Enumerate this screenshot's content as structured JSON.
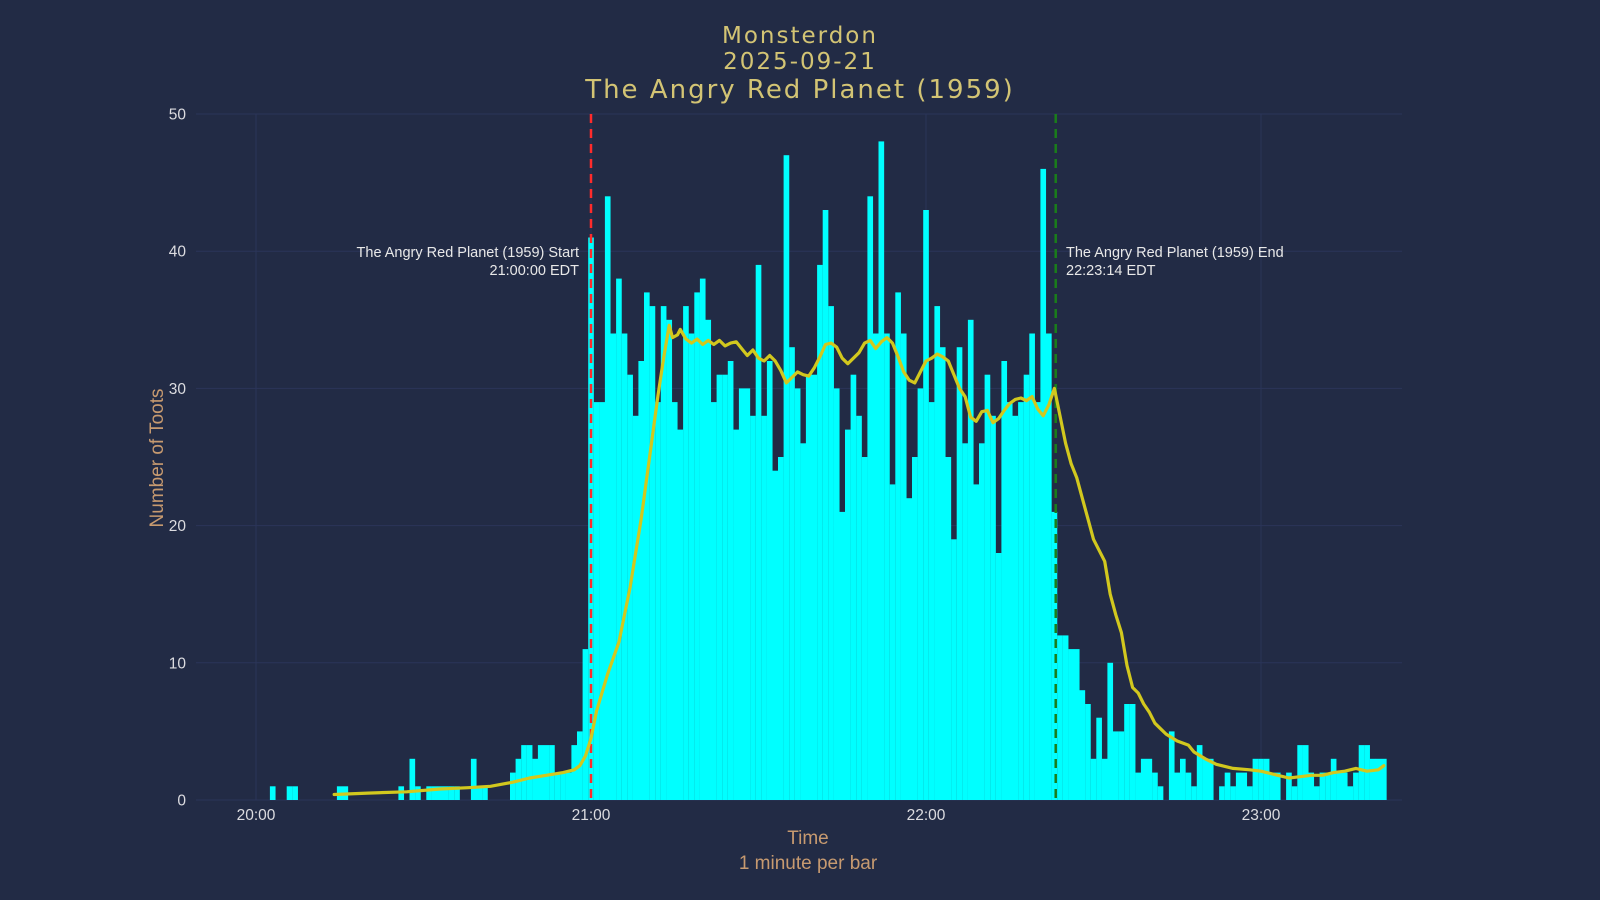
{
  "figure": {
    "title_lines": [
      "Monsterdon",
      "2025-09-21",
      "The Angry Red Planet (1959)"
    ]
  },
  "axes": {
    "y_label": "Number of Toots",
    "x_label": "Time",
    "x_sublabel": "1 minute per bar",
    "y_ticks": [
      0,
      10,
      20,
      30,
      40,
      50
    ],
    "x_ticks": [
      {
        "label": "20:00",
        "minute": 0
      },
      {
        "label": "21:00",
        "minute": 60
      },
      {
        "label": "22:00",
        "minute": 120
      },
      {
        "label": "23:00",
        "minute": 180
      }
    ]
  },
  "annotations": {
    "start": {
      "line1": "The Angry Red Planet (1959) Start",
      "line2": "21:00:00 EDT",
      "minute": 60
    },
    "end": {
      "line1": "The Angry Red Planet (1959) End",
      "line2": "22:23:14 EDT",
      "minute": 143.233
    }
  },
  "colors": {
    "background": "#222b45",
    "grid": "#2b3559",
    "bar": "#00ffff",
    "average_line": "#d2c81e",
    "start_line": "#ff2b2b",
    "end_line": "#1a7d1a",
    "title_text": "#d3c474",
    "axis_label_text": "#c79a70",
    "tick_text": "#dcdce0",
    "annotation_text": "#e8e8e8"
  },
  "chart_data": {
    "type": "bar",
    "title": "Monsterdon 2025-09-21 — The Angry Red Planet (1959)",
    "xlabel": "Time",
    "ylabel": "Number of Toots",
    "ylim": [
      0,
      50
    ],
    "grid": true,
    "legend": false,
    "x_start_label": "20:00",
    "minutes_per_bar": 1,
    "bar_values_by_minute_from_2000": [
      0,
      0,
      0,
      1,
      0,
      0,
      1,
      1,
      0,
      0,
      0,
      0,
      0,
      0,
      0,
      1,
      1,
      0,
      0,
      0,
      0,
      0,
      0,
      0,
      0,
      0,
      1,
      0,
      3,
      1,
      0,
      1,
      1,
      1,
      1,
      1,
      1,
      0,
      0,
      3,
      1,
      1,
      0,
      0,
      0,
      0,
      2,
      3,
      4,
      4,
      3,
      4,
      4,
      4,
      2,
      2,
      2,
      4,
      5,
      11,
      41,
      29,
      29,
      44,
      34,
      38,
      34,
      31,
      28,
      32,
      37,
      36,
      29,
      36,
      35,
      29,
      27,
      36,
      34,
      37,
      38,
      35,
      29,
      31,
      31,
      32,
      27,
      30,
      30,
      28,
      39,
      28,
      32,
      24,
      25,
      47,
      33,
      30,
      26,
      31,
      31,
      39,
      43,
      36,
      30,
      21,
      27,
      31,
      28,
      25,
      44,
      34,
      48,
      34,
      23,
      37,
      34,
      22,
      25,
      30,
      43,
      29,
      36,
      33,
      25,
      19,
      33,
      26,
      35,
      23,
      26,
      31,
      28,
      18,
      32,
      29,
      28,
      29,
      31,
      34,
      29,
      46,
      34,
      21,
      12,
      12,
      11,
      11,
      8,
      7,
      3,
      6,
      3,
      10,
      5,
      5,
      7,
      7,
      2,
      3,
      3,
      2,
      1,
      0,
      5,
      2,
      3,
      2,
      1,
      4,
      3,
      3,
      0,
      1,
      2,
      1,
      2,
      2,
      1,
      3,
      3,
      3,
      2,
      2,
      0,
      2,
      1,
      4,
      4,
      2,
      1,
      2,
      2,
      3,
      2,
      2,
      1,
      2,
      4,
      4,
      3,
      3,
      3
    ],
    "series": [
      {
        "name": "toots-per-minute",
        "type": "bar",
        "color": "#00ffff"
      },
      {
        "name": "rolling-average",
        "type": "line",
        "color": "#d2c81e",
        "points_minute_value": [
          [
            14,
            0.4
          ],
          [
            20,
            0.5
          ],
          [
            27,
            0.6
          ],
          [
            33,
            0.8
          ],
          [
            38,
            0.9
          ],
          [
            42,
            1.0
          ],
          [
            46,
            1.3
          ],
          [
            49,
            1.6
          ],
          [
            52,
            1.8
          ],
          [
            55,
            2.0
          ],
          [
            57,
            2.2
          ],
          [
            58,
            2.5
          ],
          [
            59,
            3.2
          ],
          [
            60,
            4.5
          ],
          [
            61,
            6.5
          ],
          [
            63,
            9.2
          ],
          [
            65,
            11.5
          ],
          [
            67,
            15.5
          ],
          [
            69,
            20.5
          ],
          [
            71,
            26.5
          ],
          [
            72,
            29.5
          ],
          [
            73,
            32.2
          ],
          [
            74,
            34.6
          ],
          [
            74.6,
            33.7
          ],
          [
            75.5,
            33.9
          ],
          [
            76,
            34.3
          ],
          [
            77,
            33.6
          ],
          [
            78,
            33.3
          ],
          [
            79,
            33.6
          ],
          [
            80,
            33.2
          ],
          [
            81,
            33.5
          ],
          [
            82,
            33.2
          ],
          [
            83,
            33.5
          ],
          [
            84,
            33.1
          ],
          [
            85,
            33.3
          ],
          [
            86,
            33.4
          ],
          [
            87,
            32.9
          ],
          [
            88,
            32.4
          ],
          [
            89,
            32.8
          ],
          [
            90,
            32.2
          ],
          [
            91,
            32.0
          ],
          [
            92,
            32.4
          ],
          [
            93,
            32.0
          ],
          [
            94,
            31.3
          ],
          [
            95,
            30.4
          ],
          [
            96,
            30.8
          ],
          [
            97,
            31.2
          ],
          [
            98,
            31.0
          ],
          [
            99,
            30.9
          ],
          [
            100,
            31.5
          ],
          [
            101,
            32.3
          ],
          [
            102,
            33.2
          ],
          [
            103,
            33.3
          ],
          [
            104,
            33.0
          ],
          [
            105,
            32.2
          ],
          [
            106,
            31.8
          ],
          [
            107,
            32.2
          ],
          [
            108,
            32.6
          ],
          [
            109,
            33.3
          ],
          [
            110,
            33.5
          ],
          [
            111,
            32.9
          ],
          [
            112,
            33.4
          ],
          [
            113,
            33.7
          ],
          [
            114,
            33.3
          ],
          [
            115,
            32.3
          ],
          [
            116,
            31.2
          ],
          [
            117,
            30.6
          ],
          [
            118,
            30.4
          ],
          [
            119,
            31.2
          ],
          [
            120,
            32.0
          ],
          [
            121,
            32.2
          ],
          [
            122,
            32.5
          ],
          [
            123,
            32.3
          ],
          [
            124,
            32.0
          ],
          [
            125,
            31.0
          ],
          [
            126,
            30.0
          ],
          [
            127,
            29.4
          ],
          [
            128,
            27.9
          ],
          [
            129,
            27.6
          ],
          [
            130,
            28.3
          ],
          [
            131,
            28.4
          ],
          [
            132,
            27.5
          ],
          [
            133,
            27.8
          ],
          [
            134,
            28.4
          ],
          [
            135,
            28.9
          ],
          [
            136,
            29.2
          ],
          [
            137,
            29.3
          ],
          [
            138,
            29.1
          ],
          [
            139,
            29.4
          ],
          [
            140,
            28.5
          ],
          [
            141,
            28.0
          ],
          [
            142,
            28.8
          ],
          [
            143,
            30.0
          ],
          [
            144,
            28.0
          ],
          [
            145,
            26.0
          ],
          [
            146,
            24.5
          ],
          [
            147,
            23.5
          ],
          [
            148,
            22.0
          ],
          [
            149,
            20.5
          ],
          [
            150,
            19.0
          ],
          [
            151,
            18.2
          ],
          [
            152,
            17.4
          ],
          [
            153,
            15.0
          ],
          [
            154,
            13.5
          ],
          [
            155,
            12.2
          ],
          [
            156,
            9.8
          ],
          [
            157,
            8.2
          ],
          [
            158,
            7.8
          ],
          [
            159,
            7.0
          ],
          [
            160,
            6.4
          ],
          [
            161,
            5.6
          ],
          [
            162,
            5.2
          ],
          [
            163,
            4.8
          ],
          [
            165,
            4.3
          ],
          [
            167,
            4.0
          ],
          [
            168,
            3.5
          ],
          [
            170,
            3.0
          ],
          [
            172,
            2.6
          ],
          [
            175,
            2.3
          ],
          [
            178,
            2.2
          ],
          [
            180,
            2.1
          ],
          [
            183,
            1.8
          ],
          [
            185,
            1.6
          ],
          [
            187,
            1.7
          ],
          [
            189,
            1.8
          ],
          [
            191,
            1.8
          ],
          [
            193,
            2.0
          ],
          [
            195,
            2.1
          ],
          [
            197,
            2.3
          ],
          [
            199,
            2.1
          ],
          [
            201,
            2.2
          ],
          [
            202,
            2.5
          ]
        ]
      }
    ],
    "event_lines": [
      {
        "name": "movie-start",
        "label": "The Angry Red Planet (1959) Start 21:00:00 EDT",
        "minute": 60,
        "style": "dashed",
        "color": "red"
      },
      {
        "name": "movie-end",
        "label": "The Angry Red Planet (1959) End 22:23:14 EDT",
        "minute": 143.233,
        "style": "dashed",
        "color": "green"
      }
    ]
  }
}
